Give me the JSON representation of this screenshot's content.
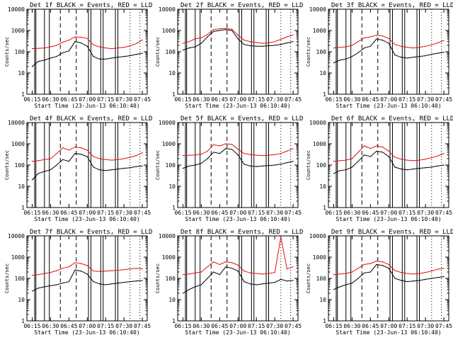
{
  "figure": {
    "x_ticks": [
      "06:15",
      "06:30",
      "06:45",
      "07:00",
      "07:15",
      "07:30",
      "07:45"
    ],
    "y_ticks": [
      "1",
      "10",
      "100",
      "1000",
      "10000"
    ],
    "ylabel": "Counts/sec",
    "xlabel": "Start Time (23-Jun-13 06:10:40)",
    "colors": {
      "events": "#000000",
      "lld": "#dd1111",
      "axes": "#000000"
    }
  },
  "chart_data": [
    {
      "type": "line",
      "title": "Det 1f BLACK = Events, RED = LLD",
      "x_range": [
        "06:10:40",
        "07:49:00"
      ],
      "ylim": [
        1,
        10000
      ],
      "y_scale": "log",
      "series": [
        {
          "color": "red",
          "x": [
            "06:15",
            "06:20",
            "06:25",
            "06:30",
            "06:35",
            "06:40",
            "06:45",
            "06:50",
            "06:55",
            "07:00",
            "07:05",
            "07:10",
            "07:15",
            "07:20",
            "07:25",
            "07:30",
            "07:35",
            "07:40",
            "07:45"
          ],
          "values": [
            140,
            145,
            150,
            170,
            200,
            280,
            350,
            500,
            480,
            420,
            210,
            170,
            150,
            140,
            150,
            160,
            190,
            240,
            360
          ]
        },
        {
          "color": "black",
          "x": [
            "06:15",
            "06:20",
            "06:25",
            "06:30",
            "06:35",
            "06:40",
            "06:45",
            "06:50",
            "06:55",
            "07:00",
            "07:05",
            "07:10",
            "07:15",
            "07:20",
            "07:25",
            "07:30",
            "07:35",
            "07:40",
            "07:45"
          ],
          "values": [
            20,
            35,
            40,
            50,
            60,
            90,
            110,
            300,
            260,
            180,
            60,
            45,
            45,
            50,
            55,
            60,
            65,
            75,
            85
          ]
        }
      ]
    },
    {
      "type": "line",
      "title": "Det 2f BLACK = Events, RED = LLD",
      "x_range": [
        "06:10:40",
        "07:49:00"
      ],
      "ylim": [
        1,
        10000
      ],
      "y_scale": "log",
      "series": [
        {
          "color": "red",
          "x": [
            "06:15",
            "06:20",
            "06:25",
            "06:30",
            "06:35",
            "06:40",
            "06:45",
            "06:50",
            "06:55",
            "07:00",
            "07:05",
            "07:10",
            "07:15",
            "07:20",
            "07:25",
            "07:30",
            "07:35",
            "07:40",
            "07:45"
          ],
          "values": [
            250,
            300,
            400,
            450,
            650,
            1100,
            1200,
            1250,
            1150,
            600,
            350,
            300,
            270,
            250,
            260,
            300,
            380,
            500,
            620
          ]
        },
        {
          "color": "black",
          "x": [
            "06:15",
            "06:20",
            "06:25",
            "06:30",
            "06:35",
            "06:40",
            "06:45",
            "06:50",
            "06:55",
            "07:00",
            "07:05",
            "07:10",
            "07:15",
            "07:20",
            "07:25",
            "07:30",
            "07:35",
            "07:40",
            "07:45"
          ],
          "values": [
            120,
            150,
            170,
            250,
            500,
            900,
            1000,
            1100,
            1000,
            400,
            220,
            190,
            180,
            180,
            190,
            200,
            220,
            260,
            300
          ]
        }
      ]
    },
    {
      "type": "line",
      "title": "Det 3f BLACK = Events, RED = LLD",
      "x_range": [
        "06:10:40",
        "07:49:00"
      ],
      "ylim": [
        1,
        10000
      ],
      "y_scale": "log",
      "series": [
        {
          "color": "red",
          "x": [
            "06:15",
            "06:20",
            "06:25",
            "06:30",
            "06:35",
            "06:40",
            "06:45",
            "06:50",
            "06:55",
            "07:00",
            "07:05",
            "07:10",
            "07:15",
            "07:20",
            "07:25",
            "07:30",
            "07:35",
            "07:40",
            "07:45"
          ],
          "values": [
            150,
            160,
            170,
            200,
            300,
            450,
            500,
            600,
            550,
            420,
            220,
            180,
            160,
            150,
            160,
            180,
            210,
            260,
            340
          ]
        },
        {
          "color": "black",
          "x": [
            "06:15",
            "06:20",
            "06:25",
            "06:30",
            "06:35",
            "06:40",
            "06:45",
            "06:50",
            "06:55",
            "07:00",
            "07:05",
            "07:10",
            "07:15",
            "07:20",
            "07:25",
            "07:30",
            "07:35",
            "07:40",
            "07:45"
          ],
          "values": [
            30,
            40,
            45,
            60,
            90,
            150,
            180,
            400,
            350,
            250,
            70,
            55,
            50,
            55,
            60,
            65,
            75,
            85,
            95
          ]
        }
      ]
    },
    {
      "type": "line",
      "title": "Det 4f BLACK = Events, RED = LLD",
      "x_range": [
        "06:10:40",
        "07:49:00"
      ],
      "ylim": [
        1,
        10000
      ],
      "y_scale": "log",
      "series": [
        {
          "color": "red",
          "x": [
            "06:15",
            "06:20",
            "06:25",
            "06:30",
            "06:35",
            "06:40",
            "06:45",
            "06:50",
            "06:55",
            "07:00",
            "07:05",
            "07:10",
            "07:15",
            "07:20",
            "07:25",
            "07:30",
            "07:35",
            "07:40",
            "07:45"
          ],
          "values": [
            150,
            160,
            180,
            200,
            350,
            650,
            500,
            700,
            650,
            500,
            250,
            200,
            180,
            170,
            180,
            200,
            230,
            280,
            380
          ]
        },
        {
          "color": "black",
          "x": [
            "06:15",
            "06:20",
            "06:25",
            "06:30",
            "06:35",
            "06:40",
            "06:45",
            "06:50",
            "06:55",
            "07:00",
            "07:05",
            "07:10",
            "07:15",
            "07:20",
            "07:25",
            "07:30",
            "07:35",
            "07:40",
            "07:45"
          ],
          "values": [
            20,
            40,
            50,
            60,
            100,
            180,
            150,
            350,
            320,
            250,
            80,
            60,
            55,
            60,
            65,
            70,
            75,
            85,
            90
          ]
        }
      ]
    },
    {
      "type": "line",
      "title": "Det 5f BLACK = Events, RED = LLD",
      "x_range": [
        "06:10:40",
        "07:49:00"
      ],
      "ylim": [
        1,
        10000
      ],
      "y_scale": "log",
      "series": [
        {
          "color": "red",
          "x": [
            "06:15",
            "06:20",
            "06:25",
            "06:30",
            "06:35",
            "06:40",
            "06:45",
            "06:50",
            "06:55",
            "07:00",
            "07:05",
            "07:10",
            "07:15",
            "07:20",
            "07:25",
            "07:30",
            "07:35",
            "07:40",
            "07:45"
          ],
          "values": [
            280,
            290,
            300,
            320,
            450,
            900,
            800,
            1000,
            950,
            550,
            350,
            310,
            290,
            280,
            290,
            310,
            350,
            450,
            600
          ]
        },
        {
          "color": "black",
          "x": [
            "06:15",
            "06:20",
            "06:25",
            "06:30",
            "06:35",
            "06:40",
            "06:45",
            "06:50",
            "06:55",
            "07:00",
            "07:05",
            "07:10",
            "07:15",
            "07:20",
            "07:25",
            "07:30",
            "07:35",
            "07:40",
            "07:45"
          ],
          "values": [
            70,
            90,
            100,
            120,
            200,
            400,
            350,
            600,
            550,
            300,
            110,
            90,
            85,
            90,
            95,
            100,
            110,
            130,
            150
          ]
        }
      ]
    },
    {
      "type": "line",
      "title": "Det 6f BLACK = Events, RED = LLD",
      "x_range": [
        "06:10:40",
        "07:49:00"
      ],
      "ylim": [
        1,
        10000
      ],
      "y_scale": "log",
      "series": [
        {
          "color": "red",
          "x": [
            "06:15",
            "06:20",
            "06:25",
            "06:30",
            "06:35",
            "06:40",
            "06:45",
            "06:50",
            "06:55",
            "07:00",
            "07:05",
            "07:10",
            "07:15",
            "07:20",
            "07:25",
            "07:30",
            "07:35",
            "07:40",
            "07:45"
          ],
          "values": [
            150,
            160,
            170,
            200,
            400,
            800,
            600,
            800,
            700,
            450,
            230,
            190,
            170,
            160,
            170,
            190,
            220,
            270,
            350
          ]
        },
        {
          "color": "black",
          "x": [
            "06:15",
            "06:20",
            "06:25",
            "06:30",
            "06:35",
            "06:40",
            "06:45",
            "06:50",
            "06:55",
            "07:00",
            "07:05",
            "07:10",
            "07:15",
            "07:20",
            "07:25",
            "07:30",
            "07:35",
            "07:40",
            "07:45"
          ],
          "values": [
            40,
            55,
            60,
            80,
            150,
            300,
            250,
            450,
            400,
            250,
            80,
            65,
            60,
            65,
            70,
            75,
            80,
            90,
            100
          ]
        }
      ]
    },
    {
      "type": "line",
      "title": "Det 7f BLACK = Events, RED = LLD",
      "x_range": [
        "06:10:40",
        "07:49:00"
      ],
      "ylim": [
        1,
        10000
      ],
      "y_scale": "log",
      "series": [
        {
          "color": "red",
          "x": [
            "06:15",
            "06:20",
            "06:25",
            "06:30",
            "06:35",
            "06:40",
            "06:45",
            "06:50",
            "06:55",
            "07:00",
            "07:05",
            "07:10",
            "07:15",
            "07:20",
            "07:25",
            "07:30",
            "07:35",
            "07:40",
            "07:45"
          ],
          "values": [
            140,
            150,
            170,
            190,
            230,
            300,
            350,
            550,
            500,
            400,
            220,
            210,
            220,
            230,
            240,
            260,
            280,
            300,
            280
          ]
        },
        {
          "color": "black",
          "x": [
            "06:15",
            "06:20",
            "06:25",
            "06:30",
            "06:35",
            "06:40",
            "06:45",
            "06:50",
            "06:55",
            "07:00",
            "07:05",
            "07:10",
            "07:15",
            "07:20",
            "07:25",
            "07:30",
            "07:35",
            "07:40",
            "07:45"
          ],
          "values": [
            25,
            35,
            40,
            45,
            50,
            60,
            70,
            250,
            220,
            160,
            70,
            55,
            50,
            55,
            60,
            65,
            70,
            75,
            80
          ]
        }
      ]
    },
    {
      "type": "line",
      "title": "Det 8f BLACK = Events, RED = LLD",
      "x_range": [
        "06:10:40",
        "07:49:00"
      ],
      "ylim": [
        1,
        10000
      ],
      "y_scale": "log",
      "series": [
        {
          "color": "red",
          "x": [
            "06:15",
            "06:20",
            "06:25",
            "06:30",
            "06:35",
            "06:40",
            "06:45",
            "06:50",
            "06:55",
            "07:00",
            "07:05",
            "07:10",
            "07:15",
            "07:20",
            "07:25",
            "07:30",
            "07:35",
            "07:40",
            "07:45"
          ],
          "values": [
            150,
            160,
            180,
            200,
            350,
            600,
            450,
            600,
            550,
            420,
            220,
            180,
            170,
            160,
            170,
            190,
            9000,
            280,
            350
          ]
        },
        {
          "color": "black",
          "x": [
            "06:15",
            "06:20",
            "06:25",
            "06:30",
            "06:35",
            "06:40",
            "06:45",
            "06:50",
            "06:55",
            "07:00",
            "07:05",
            "07:10",
            "07:15",
            "07:20",
            "07:25",
            "07:30",
            "07:35",
            "07:40",
            "07:45"
          ],
          "values": [
            20,
            30,
            40,
            50,
            100,
            200,
            150,
            350,
            300,
            220,
            70,
            55,
            50,
            55,
            60,
            65,
            90,
            75,
            80
          ]
        }
      ]
    },
    {
      "type": "line",
      "title": "Det 9f BLACK = Events, RED = LLD",
      "x_range": [
        "06:10:40",
        "07:49:00"
      ],
      "ylim": [
        1,
        10000
      ],
      "y_scale": "log",
      "series": [
        {
          "color": "red",
          "x": [
            "06:15",
            "06:20",
            "06:25",
            "06:30",
            "06:35",
            "06:40",
            "06:45",
            "06:50",
            "06:55",
            "07:00",
            "07:05",
            "07:10",
            "07:15",
            "07:20",
            "07:25",
            "07:30",
            "07:35",
            "07:40",
            "07:45"
          ],
          "values": [
            150,
            160,
            170,
            200,
            300,
            450,
            500,
            650,
            600,
            450,
            230,
            190,
            170,
            160,
            170,
            190,
            220,
            270,
            300
          ]
        },
        {
          "color": "black",
          "x": [
            "06:15",
            "06:20",
            "06:25",
            "06:30",
            "06:35",
            "06:40",
            "06:45",
            "06:50",
            "06:55",
            "07:00",
            "07:05",
            "07:10",
            "07:15",
            "07:20",
            "07:25",
            "07:30",
            "07:35",
            "07:40",
            "07:45"
          ],
          "values": [
            30,
            40,
            50,
            60,
            100,
            180,
            200,
            450,
            400,
            300,
            100,
            80,
            70,
            75,
            80,
            90,
            100,
            110,
            120
          ]
        }
      ]
    }
  ]
}
